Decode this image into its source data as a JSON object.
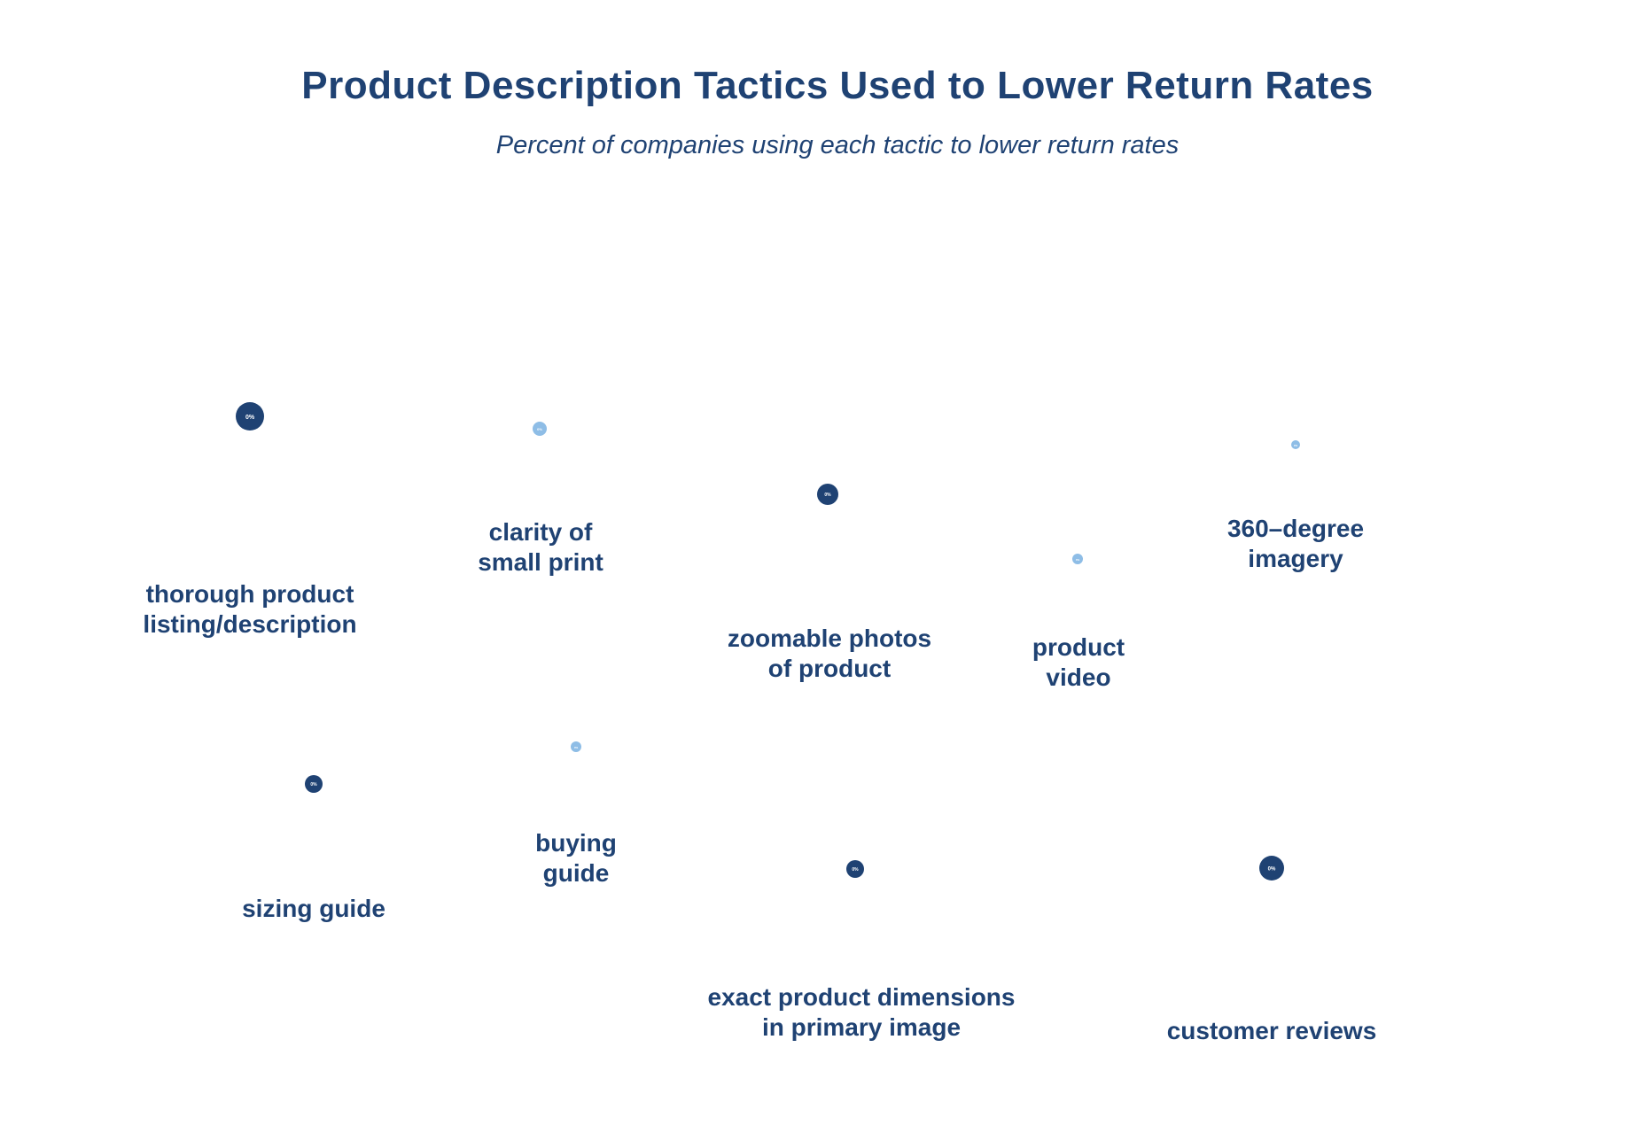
{
  "chart_data": {
    "type": "scatter",
    "variant": "bubble",
    "title": "Product Description Tactics Used to Lower Return Rates",
    "subtitle": "Percent of companies using each tactic to lower return rates",
    "grid": false,
    "legend": "none",
    "colors": {
      "title": "#1f4273",
      "dark_bubble": "#1f4273",
      "light_bubble": "#8ebde6",
      "bubble_text": "#ffffff"
    },
    "points": [
      {
        "label": "thorough product listing/description",
        "value": "0%",
        "tone": "dark"
      },
      {
        "label": "clarity of small print",
        "value": "0%",
        "tone": "light"
      },
      {
        "label": "zoomable photos of product",
        "value": "0%",
        "tone": "dark"
      },
      {
        "label": "product video",
        "value": "0%",
        "tone": "light"
      },
      {
        "label": "360–degree imagery",
        "value": "0%",
        "tone": "light"
      },
      {
        "label": "sizing guide",
        "value": "0%",
        "tone": "dark"
      },
      {
        "label": "buying guide",
        "value": "0%",
        "tone": "light"
      },
      {
        "label": "exact product dimensions in primary image",
        "value": "0%",
        "tone": "dark"
      },
      {
        "label": "customer reviews",
        "value": "0%",
        "tone": "dark"
      }
    ]
  }
}
